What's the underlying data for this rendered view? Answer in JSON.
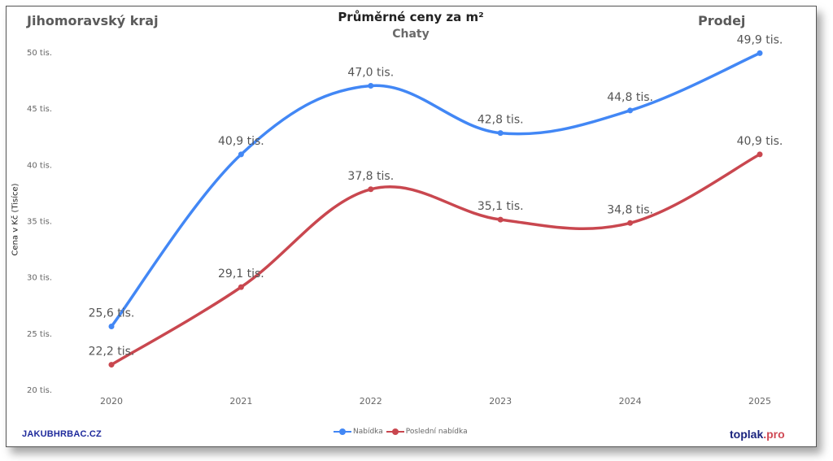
{
  "header": {
    "region": "Jihomoravský kraj",
    "title": "Průměrné ceny za m²",
    "subtitle": "Chaty",
    "mode": "Prodej"
  },
  "axes": {
    "ylabel": "Cena v Kč (Tisíce)",
    "yticks": [
      "50 tis.",
      "45 tis.",
      "40 tis.",
      "35 tis.",
      "30 tis.",
      "25 tis.",
      "20 tis."
    ],
    "xticks": [
      "2020",
      "2021",
      "2022",
      "2023",
      "2024",
      "2025"
    ]
  },
  "legend": {
    "items": [
      {
        "label": "Nabídka",
        "color": "#4287f5"
      },
      {
        "label": "Poslední nabídka",
        "color": "#c9474f"
      }
    ]
  },
  "watermarks": {
    "left": "JAKUBHRBAC.CZ",
    "right_main": "toplak",
    "right_suffix": ".pro"
  },
  "colors": {
    "nabidka": "#4287f5",
    "posledni": "#c9474f",
    "text": "#5a5a5a"
  },
  "chart_data": {
    "type": "line",
    "title": "Průměrné ceny za m²",
    "subtitle": "Chaty",
    "annotations": [
      "Jihomoravský kraj",
      "Prodej"
    ],
    "xlabel": "",
    "ylabel": "Cena v Kč (Tisíce)",
    "categories": [
      "2020",
      "2021",
      "2022",
      "2023",
      "2024",
      "2025"
    ],
    "ylim": [
      20,
      50
    ],
    "yticks": [
      20,
      25,
      30,
      35,
      40,
      45,
      50
    ],
    "grid": false,
    "legend_position": "bottom",
    "smooth": true,
    "series": [
      {
        "name": "Nabídka",
        "color": "#4287f5",
        "values": [
          25.6,
          40.9,
          47.0,
          42.8,
          44.8,
          49.9
        ],
        "labels": [
          "25,6 tis.",
          "40,9 tis.",
          "47,0 tis.",
          "42,8 tis.",
          "44,8 tis.",
          "49,9 tis."
        ]
      },
      {
        "name": "Poslední nabídka",
        "color": "#c9474f",
        "values": [
          22.2,
          29.1,
          37.8,
          35.1,
          34.8,
          40.9
        ],
        "labels": [
          "22,2 tis.",
          "29,1 tis.",
          "37,8 tis.",
          "35,1 tis.",
          "34,8 tis.",
          "40,9 tis."
        ]
      }
    ]
  }
}
